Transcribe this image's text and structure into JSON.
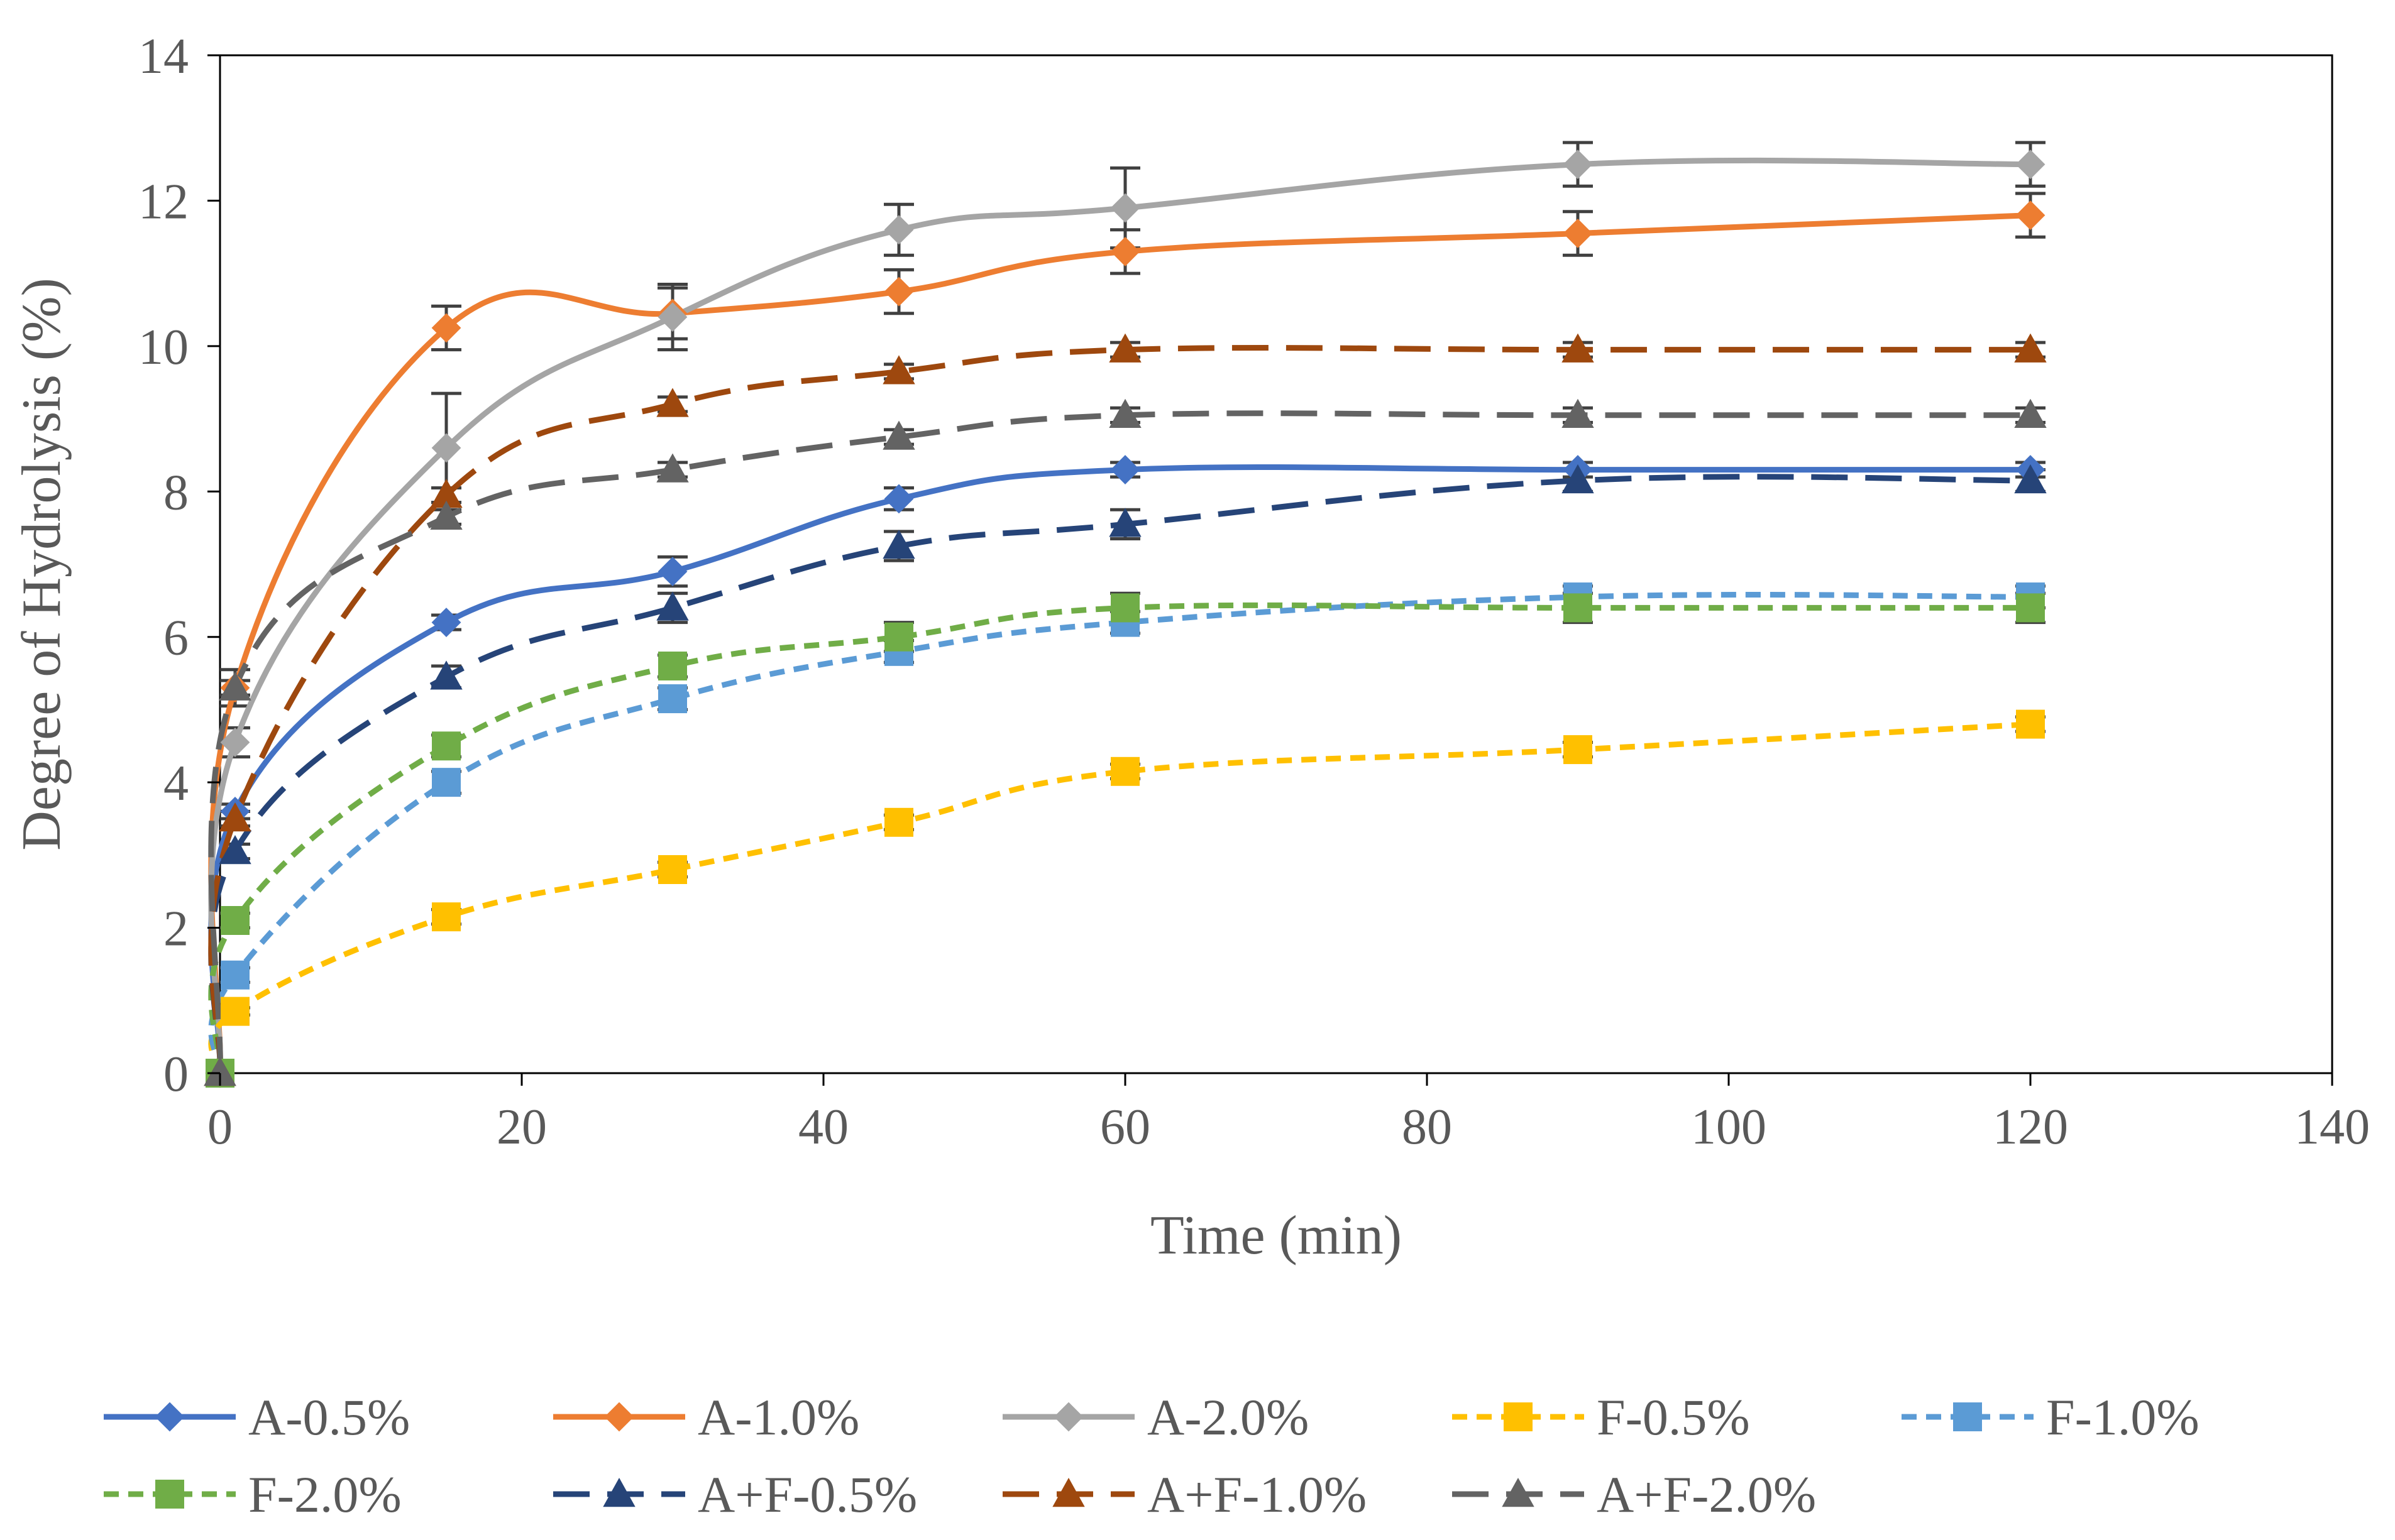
{
  "chart_data": {
    "type": "line",
    "title": "",
    "xlabel": "Time (min)",
    "ylabel": "Degree of Hydrolysis (%)",
    "xlim": [
      0,
      140
    ],
    "ylim": [
      0,
      14
    ],
    "xticks": [
      0,
      20,
      40,
      60,
      80,
      100,
      120,
      140
    ],
    "yticks": [
      0,
      2,
      4,
      6,
      8,
      10,
      12,
      14
    ],
    "x": [
      0,
      1,
      15,
      30,
      45,
      60,
      90,
      120
    ],
    "grid": false,
    "legend_position": "bottom",
    "series": [
      {
        "name": "A-0.5%",
        "color": "#4472C4",
        "marker": "diamond",
        "dash": "solid",
        "values": [
          0,
          3.6,
          6.2,
          6.9,
          7.9,
          8.3,
          8.3,
          8.3
        ],
        "errors": [
          0,
          0.1,
          0.1,
          0.2,
          0.15,
          0.1,
          0.1,
          0.1
        ]
      },
      {
        "name": "A-1.0%",
        "color": "#ED7D31",
        "marker": "diamond",
        "dash": "solid",
        "values": [
          0,
          5.3,
          10.25,
          10.45,
          10.75,
          11.3,
          11.55,
          11.8
        ],
        "errors": [
          0,
          0.25,
          0.3,
          0.35,
          0.3,
          0.3,
          0.3,
          0.3
        ]
      },
      {
        "name": "A-2.0%",
        "color": "#A5A5A5",
        "marker": "diamond",
        "dash": "solid",
        "values": [
          0,
          4.55,
          8.6,
          10.4,
          11.6,
          11.9,
          12.5,
          12.5
        ],
        "errors": [
          0,
          0.2,
          0.75,
          0.45,
          0.35,
          0.55,
          0.3,
          0.3
        ]
      },
      {
        "name": "F-0.5%",
        "color": "#FFC000",
        "marker": "square",
        "dash": "short",
        "values": [
          0,
          0.85,
          2.15,
          2.8,
          3.45,
          4.15,
          4.45,
          4.8
        ],
        "errors": [
          0,
          0.05,
          0.1,
          0.1,
          0.1,
          0.1,
          0.1,
          0.1
        ]
      },
      {
        "name": "F-1.0%",
        "color": "#5B9BD5",
        "marker": "square",
        "dash": "short",
        "values": [
          0,
          1.35,
          4.0,
          5.15,
          5.8,
          6.2,
          6.55,
          6.55
        ],
        "errors": [
          0,
          0.1,
          0.15,
          0.15,
          0.15,
          0.15,
          0.15,
          0.15
        ]
      },
      {
        "name": "F-2.0%",
        "color": "#70AD47",
        "marker": "square",
        "dash": "short",
        "values": [
          0,
          2.1,
          4.5,
          5.6,
          6.0,
          6.4,
          6.4,
          6.4
        ],
        "errors": [
          0,
          0.1,
          0.15,
          0.15,
          0.2,
          0.2,
          0.2,
          0.2
        ]
      },
      {
        "name": "A+F-0.5%",
        "color": "#264478",
        "marker": "triangle",
        "dash": "long",
        "values": [
          0,
          3.05,
          5.45,
          6.4,
          7.25,
          7.55,
          8.15,
          8.15
        ],
        "errors": [
          0,
          0.1,
          0.15,
          0.2,
          0.2,
          0.2,
          0.15,
          0.15
        ]
      },
      {
        "name": "A+F-1.0%",
        "color": "#9E480E",
        "marker": "triangle",
        "dash": "long",
        "values": [
          0,
          3.5,
          7.95,
          9.2,
          9.65,
          9.95,
          9.95,
          9.95
        ],
        "errors": [
          0,
          0.1,
          0.1,
          0.1,
          0.1,
          0.1,
          0.1,
          0.1
        ]
      },
      {
        "name": "A+F-2.0%",
        "color": "#636363",
        "marker": "triangle",
        "dash": "long",
        "values": [
          0,
          5.3,
          7.65,
          8.3,
          8.75,
          9.05,
          9.05,
          9.05
        ],
        "errors": [
          0,
          0.1,
          0.1,
          0.1,
          0.1,
          0.1,
          0.1,
          0.1
        ]
      }
    ]
  }
}
